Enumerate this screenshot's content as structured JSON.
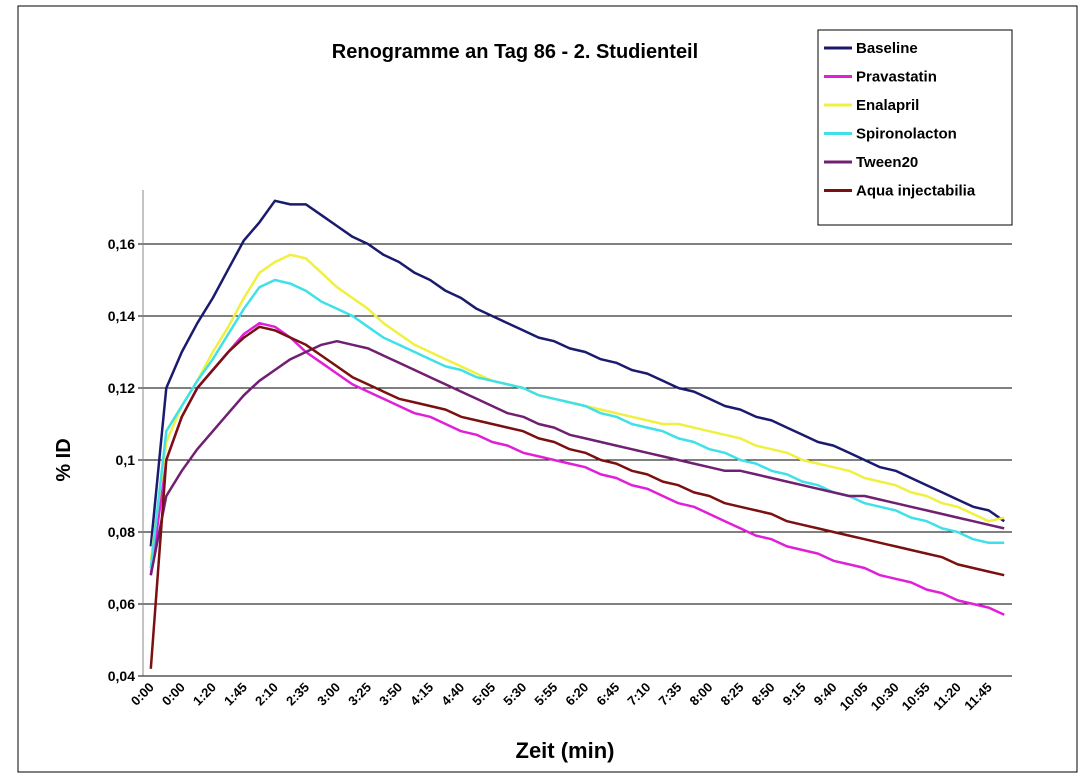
{
  "chart_data": {
    "type": "line",
    "title": "Renogramme an Tag 86 - 2. Studienteil",
    "x_label": "Zeit (min)",
    "y_label": "% ID",
    "categories": [
      "0:00",
      null,
      "0:00",
      null,
      "1:20",
      null,
      "1:45",
      null,
      "2:10",
      null,
      "2:35",
      null,
      "3:00",
      null,
      "3:25",
      null,
      "3:50",
      null,
      "4:15",
      null,
      "4:40",
      null,
      "5:05",
      null,
      "5:30",
      null,
      "5:55",
      null,
      "6:20",
      null,
      "6:45",
      null,
      "7:10",
      null,
      "7:35",
      null,
      "8:00",
      null,
      "8:25",
      null,
      "8:50",
      null,
      "9:15",
      null,
      "9:40",
      null,
      "10:05",
      null,
      "10:30",
      null,
      "10:55",
      null,
      "11:20",
      null,
      "11:45",
      null
    ],
    "ylim": [
      0.04,
      0.175
    ],
    "yticks": [
      {
        "value": 0.04,
        "label": "0,04"
      },
      {
        "value": 0.06,
        "label": "0,06"
      },
      {
        "value": 0.08,
        "label": "0,08"
      },
      {
        "value": 0.1,
        "label": "0,1"
      },
      {
        "value": 0.12,
        "label": "0,12"
      },
      {
        "value": 0.14,
        "label": "0,14"
      },
      {
        "value": 0.16,
        "label": "0,16"
      }
    ],
    "grid": true,
    "legend": "top-right",
    "series": [
      {
        "name": "Baseline",
        "color": "#1a1a6e",
        "values": [
          0.076,
          0.12,
          0.13,
          0.138,
          0.145,
          0.153,
          0.161,
          0.166,
          0.172,
          0.171,
          0.171,
          0.168,
          0.165,
          0.162,
          0.16,
          0.157,
          0.155,
          0.152,
          0.15,
          0.147,
          0.145,
          0.142,
          0.14,
          0.138,
          0.136,
          0.134,
          0.133,
          0.131,
          0.13,
          0.128,
          0.127,
          0.125,
          0.124,
          0.122,
          0.12,
          0.119,
          0.117,
          0.115,
          0.114,
          0.112,
          0.111,
          0.109,
          0.107,
          0.105,
          0.104,
          0.102,
          0.1,
          0.098,
          0.097,
          0.095,
          0.093,
          0.091,
          0.089,
          0.087,
          0.086,
          0.083
        ]
      },
      {
        "name": "Pravastatin",
        "color": "#e020d8",
        "values": [
          0.068,
          0.1,
          0.112,
          0.12,
          0.125,
          0.13,
          0.135,
          0.138,
          0.137,
          0.134,
          0.13,
          0.127,
          0.124,
          0.121,
          0.119,
          0.117,
          0.115,
          0.113,
          0.112,
          0.11,
          0.108,
          0.107,
          0.105,
          0.104,
          0.102,
          0.101,
          0.1,
          0.099,
          0.098,
          0.096,
          0.095,
          0.093,
          0.092,
          0.09,
          0.088,
          0.087,
          0.085,
          0.083,
          0.081,
          0.079,
          0.078,
          0.076,
          0.075,
          0.074,
          0.072,
          0.071,
          0.07,
          0.068,
          0.067,
          0.066,
          0.064,
          0.063,
          0.061,
          0.06,
          0.059,
          0.057
        ]
      },
      {
        "name": "Enalapril",
        "color": "#f0f040",
        "values": [
          0.072,
          0.105,
          0.115,
          0.122,
          0.13,
          0.137,
          0.145,
          0.152,
          0.155,
          0.157,
          0.156,
          0.152,
          0.148,
          0.145,
          0.142,
          0.138,
          0.135,
          0.132,
          0.13,
          0.128,
          0.126,
          0.124,
          0.122,
          0.121,
          0.12,
          0.118,
          0.117,
          0.116,
          0.115,
          0.114,
          0.113,
          0.112,
          0.111,
          0.11,
          0.11,
          0.109,
          0.108,
          0.107,
          0.106,
          0.104,
          0.103,
          0.102,
          0.1,
          0.099,
          0.098,
          0.097,
          0.095,
          0.094,
          0.093,
          0.091,
          0.09,
          0.088,
          0.087,
          0.085,
          0.083,
          0.084
        ]
      },
      {
        "name": "Spironolacton",
        "color": "#40e0e8",
        "values": [
          0.07,
          0.108,
          0.115,
          0.122,
          0.128,
          0.135,
          0.142,
          0.148,
          0.15,
          0.149,
          0.147,
          0.144,
          0.142,
          0.14,
          0.137,
          0.134,
          0.132,
          0.13,
          0.128,
          0.126,
          0.125,
          0.123,
          0.122,
          0.121,
          0.12,
          0.118,
          0.117,
          0.116,
          0.115,
          0.113,
          0.112,
          0.11,
          0.109,
          0.108,
          0.106,
          0.105,
          0.103,
          0.102,
          0.1,
          0.099,
          0.097,
          0.096,
          0.094,
          0.093,
          0.091,
          0.09,
          0.088,
          0.087,
          0.086,
          0.084,
          0.083,
          0.081,
          0.08,
          0.078,
          0.077,
          0.077
        ]
      },
      {
        "name": "Tween20",
        "color": "#702070",
        "values": [
          0.068,
          0.09,
          0.097,
          0.103,
          0.108,
          0.113,
          0.118,
          0.122,
          0.125,
          0.128,
          0.13,
          0.132,
          0.133,
          0.132,
          0.131,
          0.129,
          0.127,
          0.125,
          0.123,
          0.121,
          0.119,
          0.117,
          0.115,
          0.113,
          0.112,
          0.11,
          0.109,
          0.107,
          0.106,
          0.105,
          0.104,
          0.103,
          0.102,
          0.101,
          0.1,
          0.099,
          0.098,
          0.097,
          0.097,
          0.096,
          0.095,
          0.094,
          0.093,
          0.092,
          0.091,
          0.09,
          0.09,
          0.089,
          0.088,
          0.087,
          0.086,
          0.085,
          0.084,
          0.083,
          0.082,
          0.081
        ]
      },
      {
        "name": "Aqua injectabilia",
        "color": "#7a1010",
        "values": [
          0.042,
          0.1,
          0.112,
          0.12,
          0.125,
          0.13,
          0.134,
          0.137,
          0.136,
          0.134,
          0.132,
          0.129,
          0.126,
          0.123,
          0.121,
          0.119,
          0.117,
          0.116,
          0.115,
          0.114,
          0.112,
          0.111,
          0.11,
          0.109,
          0.108,
          0.106,
          0.105,
          0.103,
          0.102,
          0.1,
          0.099,
          0.097,
          0.096,
          0.094,
          0.093,
          0.091,
          0.09,
          0.088,
          0.087,
          0.086,
          0.085,
          0.083,
          0.082,
          0.081,
          0.08,
          0.079,
          0.078,
          0.077,
          0.076,
          0.075,
          0.074,
          0.073,
          0.071,
          0.07,
          0.069,
          0.068
        ]
      }
    ]
  }
}
